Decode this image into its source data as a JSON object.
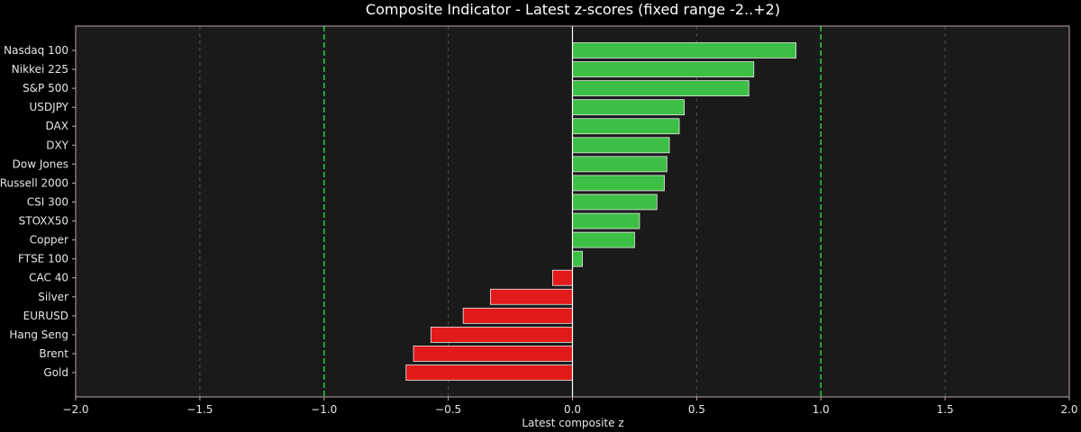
{
  "chart_data": {
    "type": "bar",
    "orientation": "horizontal",
    "title": "Composite Indicator - Latest z-scores (fixed range -2..+2)",
    "xlabel": "Latest composite z",
    "ylabel": "",
    "xlim": [
      -2.0,
      2.0
    ],
    "xticks": [
      "−2.0",
      "−1.5",
      "−1.0",
      "−0.5",
      "0.0",
      "0.5",
      "1.0",
      "1.5",
      "2.0"
    ],
    "xtick_values": [
      -2.0,
      -1.5,
      -1.0,
      -0.5,
      0.0,
      0.5,
      1.0,
      1.5,
      2.0
    ],
    "grid": true,
    "reference_lines": [
      -1.0,
      1.0
    ],
    "categories": [
      "Nasdaq 100",
      "Nikkei 225",
      "S&P 500",
      "USDJPY",
      "DAX",
      "DXY",
      "Dow Jones",
      "Russell 2000",
      "CSI 300",
      "STOXX50",
      "Copper",
      "FTSE 100",
      "CAC 40",
      "Silver",
      "EURUSD",
      "Hang Seng",
      "Brent",
      "Gold"
    ],
    "values": [
      0.9,
      0.73,
      0.71,
      0.45,
      0.43,
      0.39,
      0.38,
      0.37,
      0.34,
      0.27,
      0.25,
      0.04,
      -0.08,
      -0.33,
      -0.44,
      -0.57,
      -0.64,
      -0.67
    ]
  },
  "colors": {
    "background": "#000000",
    "plot_background": "#1a1a1a",
    "positive": "#3dbf45",
    "negative": "#e31a1c",
    "reference_line": "#2ecc40",
    "grid": "#4d4d4d",
    "zero_line": "#ffffff",
    "spine": "#bfa8a8"
  }
}
